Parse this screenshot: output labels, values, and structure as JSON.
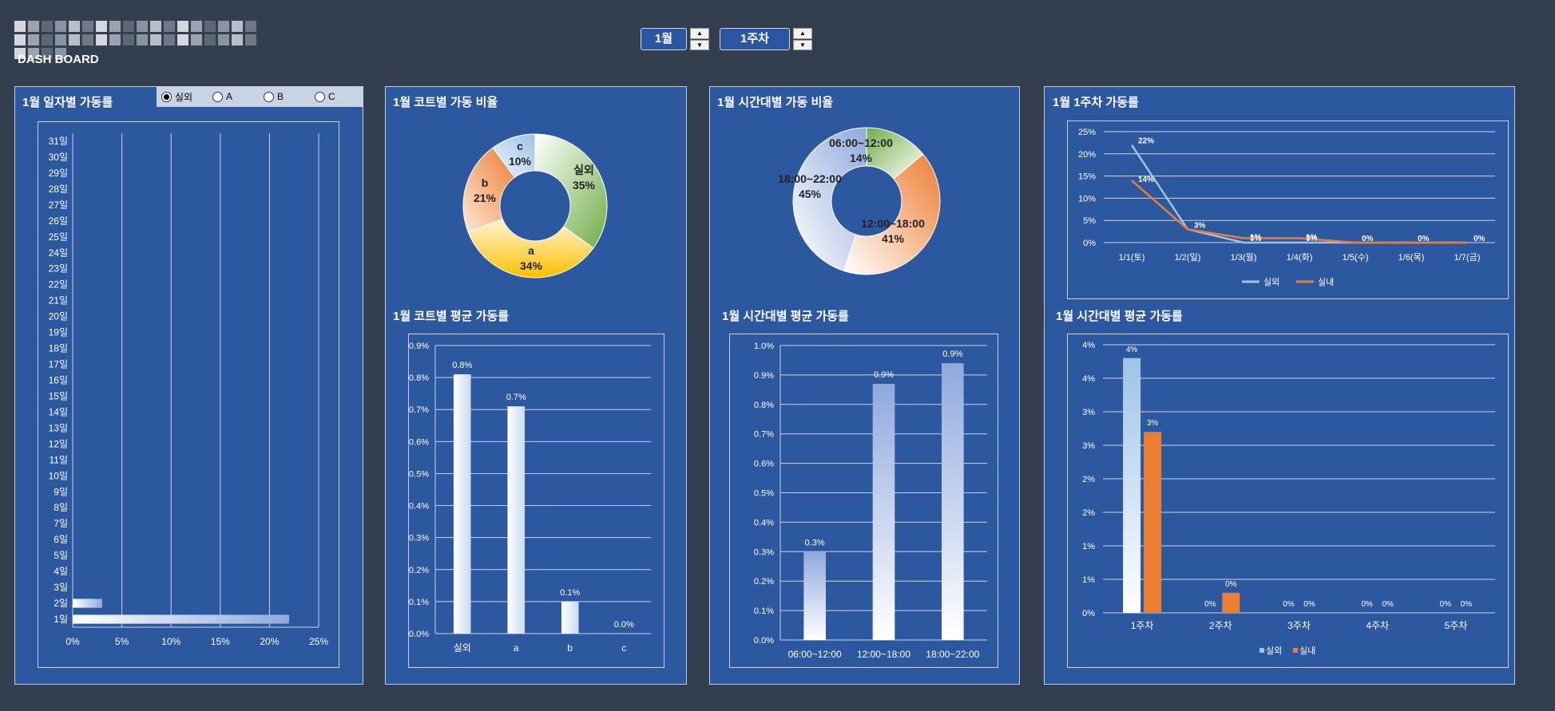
{
  "header": {
    "subtitle": "DASH BOARD",
    "month": "1월",
    "week": "1주차"
  },
  "colors": {
    "background": "#333f4f",
    "panel": "#2c58a0",
    "outdoor": "#9dc3e6",
    "indoor": "#ed7d31",
    "green": "#70ad47",
    "yellow": "#ffc000"
  },
  "icons": {
    "spin_up": "▲",
    "spin_down": "▼"
  },
  "panel1": {
    "title": "1월 일자별 가동률",
    "radios": [
      {
        "label": "실외",
        "checked": true
      },
      {
        "label": "A",
        "checked": false
      },
      {
        "label": "B",
        "checked": false
      },
      {
        "label": "C",
        "checked": false
      }
    ]
  },
  "panel2": {
    "title_top": "1월 코트별 가동 비율",
    "title_bottom": "1월 코트별 평균 가동률"
  },
  "panel3": {
    "title_top": "1월 시간대별 가동 비율",
    "title_bottom": "1월 시간대별 평균 가동률"
  },
  "panel4": {
    "title_top": "1월 1주차 가동률",
    "title_bottom": "1월 시간대별 평균 가동률"
  },
  "chart_data": [
    {
      "id": "daily",
      "type": "bar",
      "orientation": "horizontal",
      "categories": [
        "1일",
        "2일",
        "3일",
        "4일",
        "5일",
        "6일",
        "7일",
        "8일",
        "9일",
        "10일",
        "11일",
        "12일",
        "13일",
        "14일",
        "15일",
        "16일",
        "17일",
        "18일",
        "19일",
        "20일",
        "21일",
        "22일",
        "23일",
        "24일",
        "25일",
        "26일",
        "27일",
        "28일",
        "29일",
        "30일",
        "31일"
      ],
      "values": [
        22,
        3,
        0,
        0,
        0,
        0,
        0,
        0,
        0,
        0,
        0,
        0,
        0,
        0,
        0,
        0,
        0,
        0,
        0,
        0,
        0,
        0,
        0,
        0,
        0,
        0,
        0,
        0,
        0,
        0,
        0
      ],
      "xticks": [
        "0%",
        "5%",
        "10%",
        "15%",
        "20%",
        "25%"
      ],
      "xlim": [
        0,
        25
      ],
      "grid": true
    },
    {
      "id": "court_ratio",
      "type": "pie",
      "donut": true,
      "slices": [
        {
          "label": "실외",
          "value": 35,
          "text": "35%"
        },
        {
          "label": "a",
          "value": 34,
          "text": "34%"
        },
        {
          "label": "b",
          "value": 21,
          "text": "21%"
        },
        {
          "label": "c",
          "value": 10,
          "text": "10%"
        }
      ]
    },
    {
      "id": "court_avg",
      "type": "bar",
      "categories": [
        "실외",
        "a",
        "b",
        "c"
      ],
      "values": [
        0.81,
        0.71,
        0.1,
        0.0
      ],
      "data_labels": [
        "0.8%",
        "0.7%",
        "0.1%",
        "0.0%"
      ],
      "yticks": [
        "0.0%",
        "0.1%",
        "0.2%",
        "0.3%",
        "0.4%",
        "0.5%",
        "0.6%",
        "0.7%",
        "0.8%",
        "0.9%"
      ],
      "ylim": [
        0,
        0.9
      ],
      "grid": true
    },
    {
      "id": "time_ratio",
      "type": "pie",
      "donut": true,
      "slices": [
        {
          "label": "06:00~12:00",
          "value": 14,
          "text": "14%"
        },
        {
          "label": "12:00~18:00",
          "value": 41,
          "text": "41%"
        },
        {
          "label": "18:00~22:00",
          "value": 45,
          "text": "45%"
        }
      ]
    },
    {
      "id": "time_avg",
      "type": "bar",
      "categories": [
        "06:00~12:00",
        "12:00~18:00",
        "18:00~22:00"
      ],
      "values": [
        0.3,
        0.87,
        0.94
      ],
      "data_labels": [
        "0.3%",
        "0.9%",
        "0.9%"
      ],
      "yticks": [
        "0.0%",
        "0.1%",
        "0.2%",
        "0.3%",
        "0.4%",
        "0.5%",
        "0.6%",
        "0.7%",
        "0.8%",
        "0.9%",
        "1.0%"
      ],
      "ylim": [
        0,
        1.0
      ],
      "grid": true
    },
    {
      "id": "week_rate",
      "type": "line",
      "categories": [
        "1/1(토)",
        "1/2(일)",
        "1/3(월)",
        "1/4(화)",
        "1/5(수)",
        "1/6(목)",
        "1/7(금)"
      ],
      "series": [
        {
          "name": "실외",
          "values": [
            22,
            3,
            0,
            0,
            0,
            0,
            0
          ],
          "labels": [
            "22%",
            "3%",
            "0%",
            "0%",
            "0%",
            "0%",
            "0%"
          ]
        },
        {
          "name": "실내",
          "values": [
            14,
            3,
            1,
            1,
            0,
            0,
            0
          ],
          "labels": [
            "14%",
            "",
            "1%",
            "1%",
            "",
            "",
            ""
          ]
        }
      ],
      "yticks": [
        "0%",
        "5%",
        "10%",
        "15%",
        "20%",
        "25%"
      ],
      "ylim": [
        0,
        25
      ],
      "legend": "bottom",
      "grid": true
    },
    {
      "id": "weekly_avg",
      "type": "bar",
      "categories": [
        "1주차",
        "2주차",
        "3주차",
        "4주차",
        "5주차"
      ],
      "series": [
        {
          "name": "실외",
          "values": [
            3.8,
            0,
            0,
            0,
            0
          ],
          "labels": [
            "4%",
            "0%",
            "0%",
            "0%",
            "0%"
          ]
        },
        {
          "name": "실내",
          "values": [
            2.7,
            0.3,
            0,
            0,
            0
          ],
          "labels": [
            "3%",
            "0%",
            "0%",
            "0%",
            "0%"
          ]
        }
      ],
      "yticks": [
        "0%",
        "1%",
        "1%",
        "2%",
        "2%",
        "3%",
        "3%",
        "4%",
        "4%"
      ],
      "ylim": [
        0,
        4
      ],
      "legend": "bottom",
      "grid": true
    }
  ]
}
